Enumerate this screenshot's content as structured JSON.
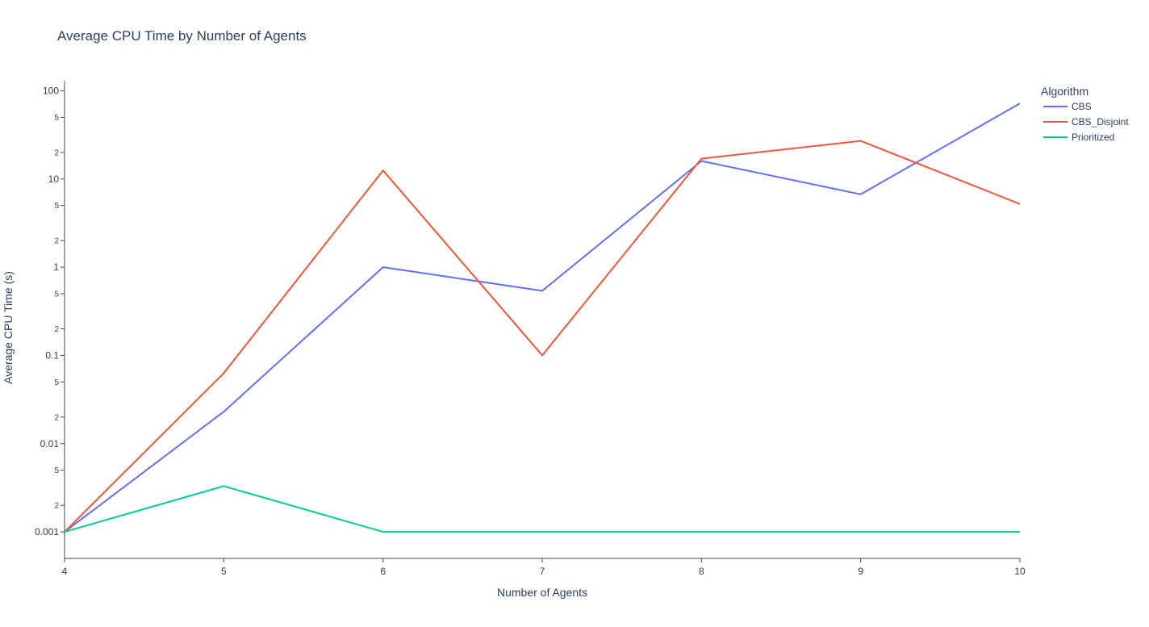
{
  "chart_data": {
    "type": "line",
    "title": "Average CPU Time by Number of Agents",
    "xlabel": "Number of Agents",
    "ylabel": "Average CPU Time (s)",
    "x": [
      4,
      5,
      6,
      7,
      8,
      9,
      10
    ],
    "xlim": [
      4,
      10
    ],
    "ylim": [
      0.0005,
      130
    ],
    "y_scale": "log",
    "x_ticks": [
      "4",
      "5",
      "6",
      "7",
      "8",
      "9",
      "10"
    ],
    "y_major_ticks": [
      {
        "value": 0.001,
        "label": "0.001"
      },
      {
        "value": 0.01,
        "label": "0.01"
      },
      {
        "value": 0.1,
        "label": "0.1"
      },
      {
        "value": 1,
        "label": "1"
      },
      {
        "value": 10,
        "label": "10"
      },
      {
        "value": 100,
        "label": "100"
      }
    ],
    "y_minor_ticks": [
      {
        "value": 0.002,
        "label": "2"
      },
      {
        "value": 0.005,
        "label": "5"
      },
      {
        "value": 0.02,
        "label": "2"
      },
      {
        "value": 0.05,
        "label": "5"
      },
      {
        "value": 0.2,
        "label": "2"
      },
      {
        "value": 0.5,
        "label": "5"
      },
      {
        "value": 2,
        "label": "2"
      },
      {
        "value": 5,
        "label": "5"
      },
      {
        "value": 20,
        "label": "2"
      },
      {
        "value": 50,
        "label": "5"
      }
    ],
    "grid": false,
    "legend": {
      "title": "Algorithm",
      "position": "top-right"
    },
    "series": [
      {
        "name": "CBS",
        "color": "#636efa",
        "values": [
          0.001,
          0.023,
          1.0,
          0.54,
          16,
          6.7,
          72
        ]
      },
      {
        "name": "CBS_Disjoint",
        "color": "#ef553b",
        "values": [
          0.001,
          0.063,
          12.5,
          0.1,
          17,
          27,
          5.2
        ]
      },
      {
        "name": "Prioritized",
        "color": "#00cc96",
        "values": [
          0.001,
          0.0033,
          0.001,
          0.001,
          0.001,
          0.001,
          0.001
        ]
      }
    ]
  }
}
